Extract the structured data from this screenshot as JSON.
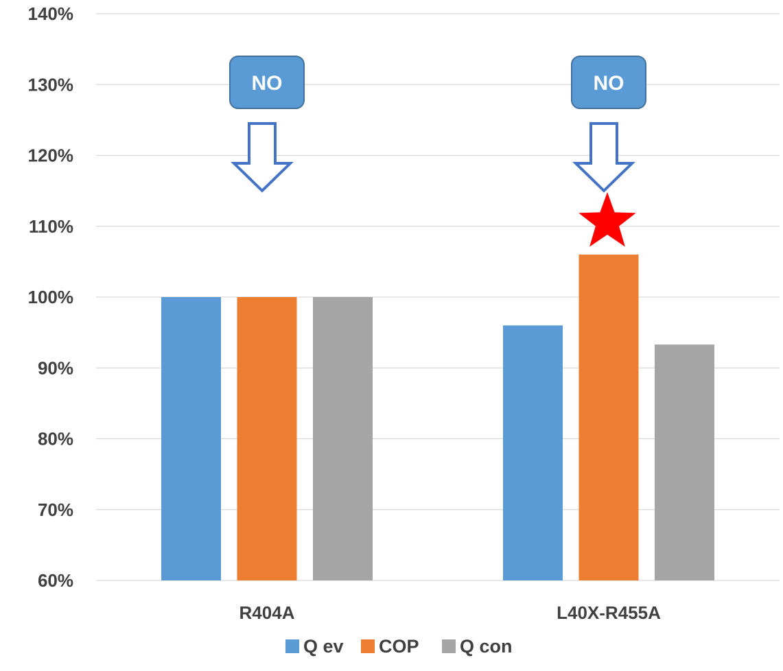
{
  "chart_data": {
    "type": "bar",
    "categories": [
      "R404A",
      "L40X-R455A"
    ],
    "series": [
      {
        "name": "Q ev",
        "color": "#5B9BD5",
        "values": [
          100,
          96
        ]
      },
      {
        "name": "COP",
        "color": "#ED7D31",
        "values": [
          100,
          106
        ]
      },
      {
        "name": "Q con",
        "color": "#A5A5A5",
        "values": [
          100,
          93.3
        ]
      }
    ],
    "y_ticks": [
      "60%",
      "70%",
      "80%",
      "90%",
      "100%",
      "110%",
      "120%",
      "130%",
      "140%"
    ],
    "ylim": [
      60,
      140
    ],
    "grid": true,
    "legend": "bottom",
    "annotations": [
      {
        "category": "R404A",
        "label": "NO",
        "icon": "down-arrow-icon"
      },
      {
        "category": "L40X-R455A",
        "label": "NO",
        "icon": "down-arrow-icon",
        "marker": "red-star-icon"
      }
    ],
    "colors": {
      "callout_fill": "#5B9BD5",
      "callout_stroke": "#41719C",
      "arrow_stroke": "#4472C4",
      "star": "#FF0000",
      "grid": "#D9D9D9",
      "text": "#404040"
    }
  }
}
